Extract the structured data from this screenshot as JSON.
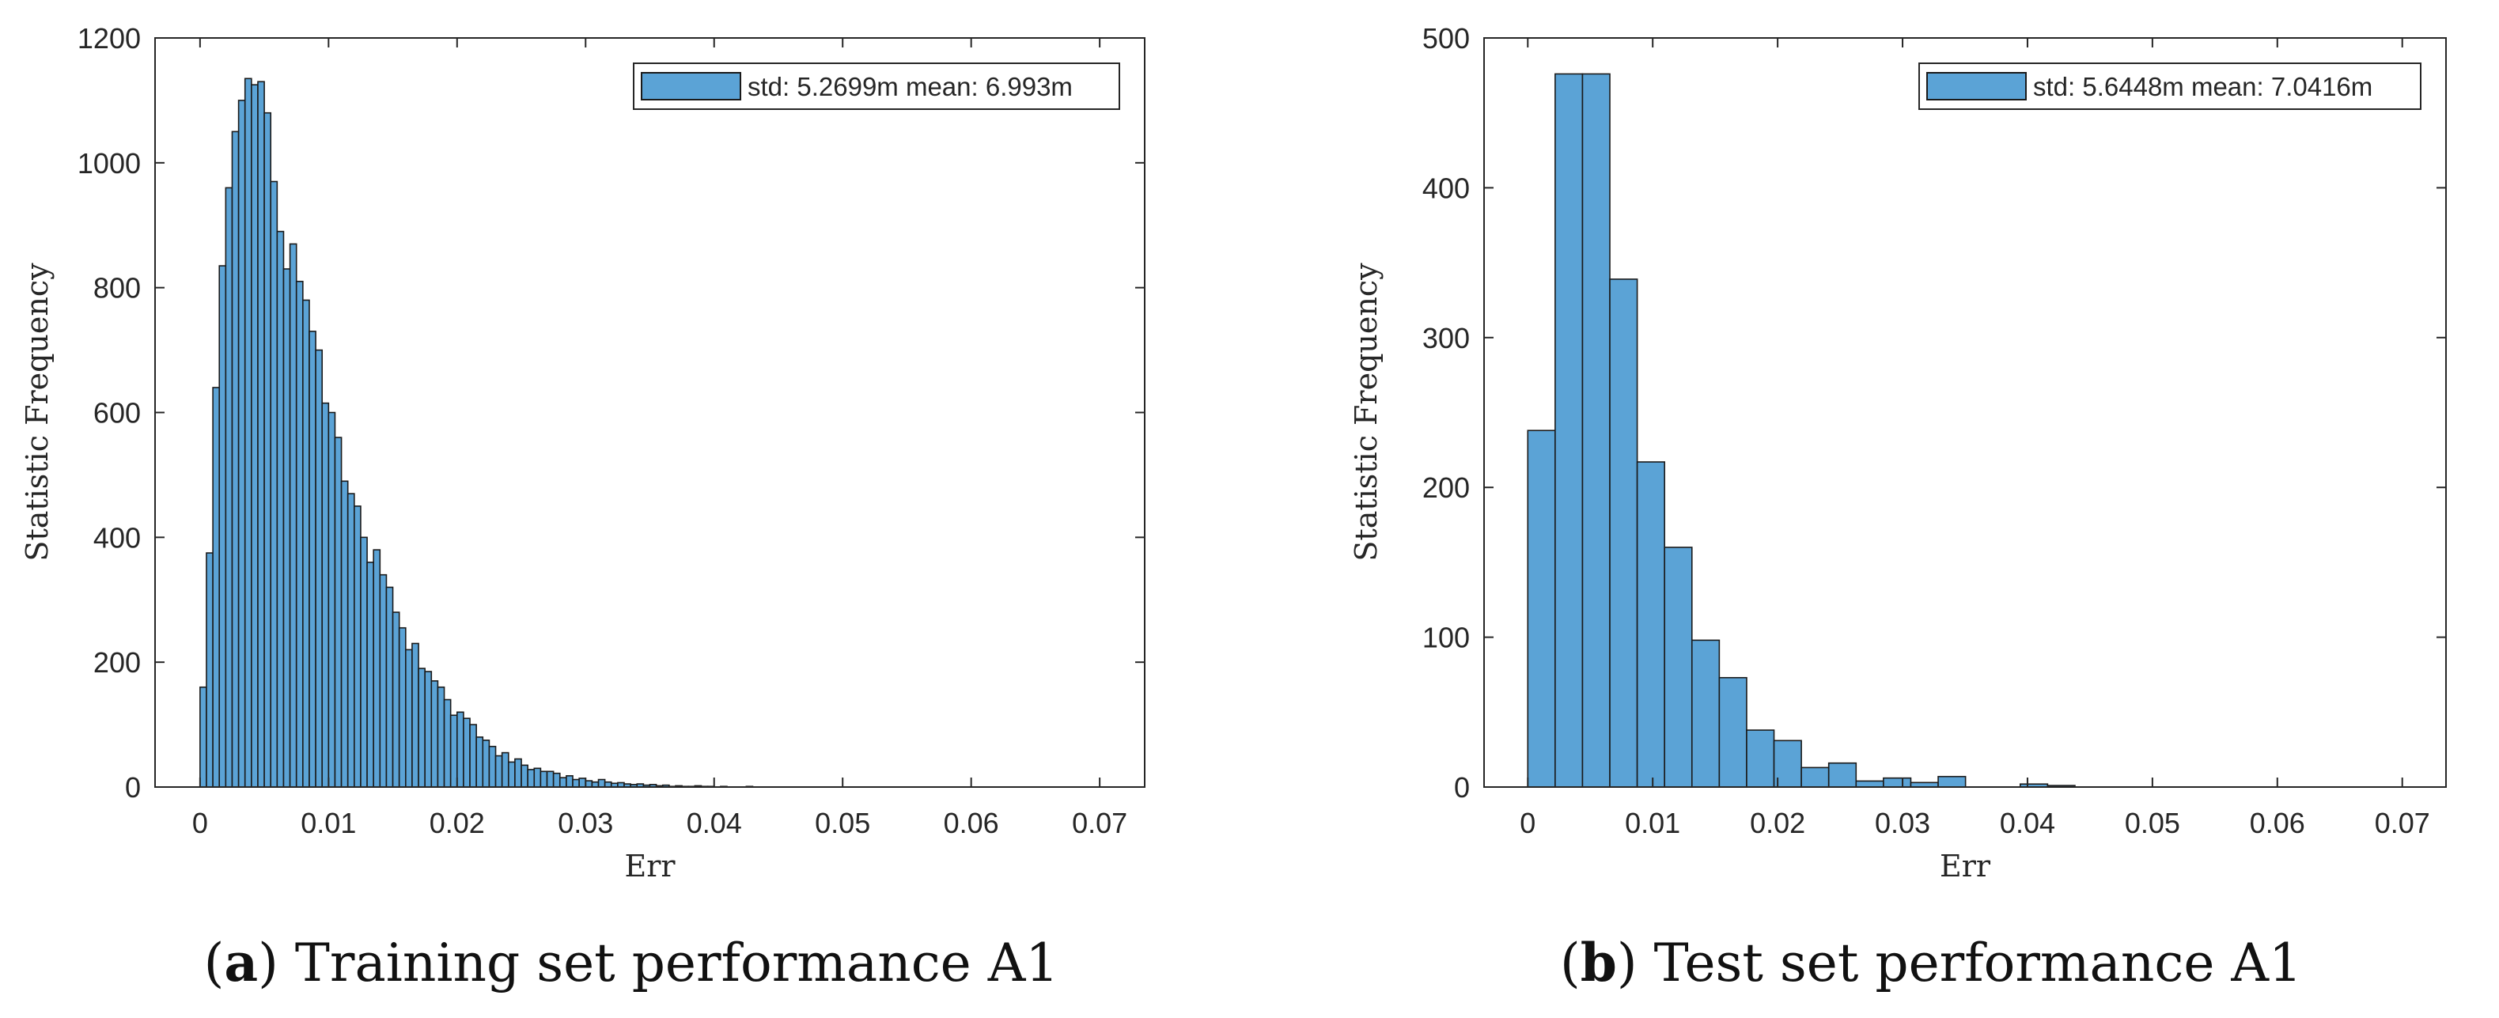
{
  "colors": {
    "bar_fill": "#5ba3d6",
    "bar_edge": "#1a1a1a",
    "axis": "#262626"
  },
  "chart_data": [
    {
      "type": "bar",
      "title": "",
      "xlabel": "Err",
      "ylabel": "Statistic Frequency",
      "xlim": [
        -0.0035,
        0.0735
      ],
      "ylim": [
        0,
        1200
      ],
      "xticks": [
        0,
        0.01,
        0.02,
        0.03,
        0.04,
        0.05,
        0.06,
        0.07
      ],
      "xtick_labels": [
        "0",
        "0.01",
        "0.02",
        "0.03",
        "0.04",
        "0.05",
        "0.06",
        "0.07"
      ],
      "yticks": [
        0,
        200,
        400,
        600,
        800,
        1000,
        1200
      ],
      "ytick_labels": [
        "0",
        "200",
        "400",
        "600",
        "800",
        "1000",
        "1200"
      ],
      "bin_start": 0,
      "bin_width": 0.0005,
      "legend": "std: 5.2699m mean: 6.993m",
      "legend_position": "top-right",
      "caption_label": "a",
      "caption_text": " Training set performance A1",
      "values": [
        160,
        375,
        640,
        835,
        960,
        1050,
        1100,
        1135,
        1125,
        1130,
        1080,
        970,
        890,
        830,
        870,
        810,
        780,
        730,
        700,
        615,
        600,
        560,
        490,
        470,
        450,
        400,
        360,
        380,
        340,
        320,
        280,
        255,
        220,
        230,
        190,
        185,
        170,
        160,
        140,
        115,
        120,
        110,
        100,
        80,
        75,
        65,
        50,
        55,
        40,
        45,
        35,
        28,
        30,
        25,
        25,
        22,
        15,
        18,
        12,
        14,
        10,
        8,
        12,
        8,
        6,
        7,
        5,
        4,
        5,
        3,
        4,
        2,
        3,
        1,
        2,
        1,
        1,
        2,
        1,
        1,
        0,
        1,
        0,
        0,
        0,
        1
      ]
    },
    {
      "type": "bar",
      "title": "",
      "xlabel": "Err",
      "ylabel": "Statistic Frequency",
      "xlim": [
        -0.0035,
        0.0735
      ],
      "ylim": [
        0,
        500
      ],
      "xticks": [
        0,
        0.01,
        0.02,
        0.03,
        0.04,
        0.05,
        0.06,
        0.07
      ],
      "xtick_labels": [
        "0",
        "0.01",
        "0.02",
        "0.03",
        "0.04",
        "0.05",
        "0.06",
        "0.07"
      ],
      "yticks": [
        0,
        100,
        200,
        300,
        400,
        500
      ],
      "ytick_labels": [
        "0",
        "100",
        "200",
        "300",
        "400",
        "500"
      ],
      "bin_start": 0,
      "bin_width": 0.00219,
      "legend": "std: 5.6448m mean: 7.0416m",
      "legend_position": "top-right",
      "caption_label": "b",
      "caption_text": " Test set performance A1",
      "values": [
        238,
        476,
        476,
        339,
        217,
        160,
        98,
        73,
        38,
        31,
        13,
        16,
        4,
        6,
        3,
        7,
        0,
        0,
        2,
        1
      ]
    }
  ]
}
